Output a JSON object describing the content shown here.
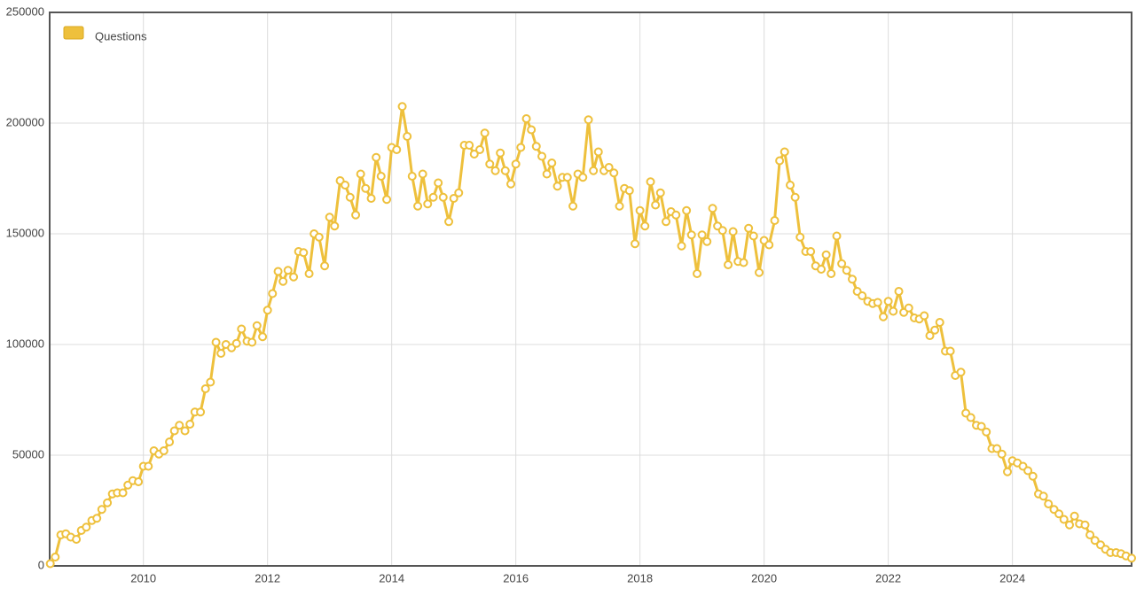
{
  "chart_data": {
    "type": "line",
    "x": [
      2008.5,
      2008.58,
      2008.67,
      2008.75,
      2008.83,
      2008.92,
      2009,
      2009.08,
      2009.17,
      2009.25,
      2009.33,
      2009.42,
      2009.5,
      2009.58,
      2009.67,
      2009.75,
      2009.83,
      2009.92,
      2010,
      2010.08,
      2010.17,
      2010.25,
      2010.33,
      2010.42,
      2010.5,
      2010.58,
      2010.67,
      2010.75,
      2010.83,
      2010.92,
      2011,
      2011.08,
      2011.17,
      2011.25,
      2011.33,
      2011.42,
      2011.5,
      2011.58,
      2011.67,
      2011.75,
      2011.83,
      2011.92,
      2012,
      2012.08,
      2012.17,
      2012.25,
      2012.33,
      2012.42,
      2012.5,
      2012.58,
      2012.67,
      2012.75,
      2012.83,
      2012.92,
      2013,
      2013.08,
      2013.17,
      2013.25,
      2013.33,
      2013.42,
      2013.5,
      2013.58,
      2013.67,
      2013.75,
      2013.83,
      2013.92,
      2014,
      2014.08,
      2014.17,
      2014.25,
      2014.33,
      2014.42,
      2014.5,
      2014.58,
      2014.67,
      2014.75,
      2014.83,
      2014.92,
      2015,
      2015.08,
      2015.17,
      2015.25,
      2015.33,
      2015.42,
      2015.5,
      2015.58,
      2015.67,
      2015.75,
      2015.83,
      2015.92,
      2016,
      2016.08,
      2016.17,
      2016.25,
      2016.33,
      2016.42,
      2016.5,
      2016.58,
      2016.67,
      2016.75,
      2016.83,
      2016.92,
      2017,
      2017.08,
      2017.17,
      2017.25,
      2017.33,
      2017.42,
      2017.5,
      2017.58,
      2017.67,
      2017.75,
      2017.83,
      2017.92,
      2018,
      2018.08,
      2018.17,
      2018.25,
      2018.33,
      2018.42,
      2018.5,
      2018.58,
      2018.67,
      2018.75,
      2018.83,
      2018.92,
      2019,
      2019.08,
      2019.17,
      2019.25,
      2019.33,
      2019.42,
      2019.5,
      2019.58,
      2019.67,
      2019.75,
      2019.83,
      2019.92,
      2020,
      2020.08,
      2020.17,
      2020.25,
      2020.33,
      2020.42,
      2020.5,
      2020.58,
      2020.67,
      2020.75,
      2020.83,
      2020.92,
      2021,
      2021.08,
      2021.17,
      2021.25,
      2021.33,
      2021.42,
      2021.5,
      2021.58,
      2021.67,
      2021.75,
      2021.83,
      2021.92,
      2022,
      2022.08,
      2022.17,
      2022.25,
      2022.33,
      2022.42,
      2022.5,
      2022.58,
      2022.67,
      2022.75,
      2022.83,
      2022.92,
      2023,
      2023.08,
      2023.17,
      2023.25,
      2023.33,
      2023.42,
      2023.5,
      2023.58,
      2023.67,
      2023.75,
      2023.83,
      2023.92,
      2024,
      2024.08,
      2024.17,
      2024.25,
      2024.33,
      2024.42,
      2024.5,
      2024.58,
      2024.67,
      2024.75,
      2024.83,
      2024.92,
      2025,
      2025.08,
      2025.17,
      2025.25,
      2025.33,
      2025.42,
      2025.5,
      2025.58,
      2025.67,
      2025.75,
      2025.83,
      2025.92
    ],
    "series": [
      {
        "name": "Questions",
        "color": "#eec03c",
        "values": [
          1000,
          4000,
          14000,
          14500,
          13000,
          12000,
          16000,
          17500,
          20500,
          21500,
          25500,
          28500,
          32500,
          33000,
          33000,
          36500,
          38500,
          38000,
          45000,
          45000,
          52000,
          50500,
          52000,
          56000,
          61000,
          63500,
          61000,
          64000,
          69500,
          69500,
          80000,
          83000,
          101000,
          96000,
          100000,
          98500,
          100500,
          107000,
          101500,
          101000,
          108500,
          103500,
          115500,
          123000,
          133000,
          128500,
          133500,
          130500,
          142000,
          141500,
          132000,
          150000,
          148500,
          135500,
          157500,
          153500,
          174000,
          172000,
          166500,
          158500,
          177000,
          170500,
          166000,
          184500,
          176000,
          165500,
          189000,
          188000,
          207500,
          194000,
          176000,
          162500,
          177000,
          163500,
          166500,
          173000,
          166500,
          155500,
          166000,
          168500,
          190000,
          190000,
          186000,
          188000,
          195500,
          181500,
          178500,
          186500,
          178500,
          172500,
          181500,
          189000,
          202000,
          197000,
          189500,
          185000,
          177000,
          182000,
          171500,
          175500,
          175500,
          162500,
          177000,
          175500,
          201500,
          178500,
          187000,
          178500,
          180000,
          177500,
          162500,
          170500,
          169500,
          145500,
          160500,
          153500,
          173500,
          163000,
          168500,
          155500,
          160000,
          158500,
          144500,
          160500,
          149500,
          132000,
          149500,
          146500,
          161500,
          153500,
          151500,
          136000,
          151000,
          137500,
          137000,
          152500,
          149000,
          132500,
          147000,
          145000,
          156000,
          183000,
          187000,
          172000,
          166500,
          148500,
          142000,
          142000,
          135500,
          134000,
          140500,
          132000,
          149000,
          136500,
          133500,
          129500,
          124000,
          122000,
          119500,
          118500,
          119000,
          112500,
          119500,
          115000,
          124000,
          114500,
          116500,
          112000,
          111500,
          113000,
          104000,
          106500,
          110000,
          97000,
          97000,
          86000,
          87500,
          69000,
          67000,
          63500,
          63000,
          60500,
          53000,
          53000,
          50500,
          42500,
          47500,
          46500,
          45000,
          43000,
          40500,
          32500,
          31500,
          28000,
          25500,
          23500,
          21000,
          18500,
          22500,
          19000,
          18500,
          14000,
          11500,
          9500,
          7500,
          6000,
          6000,
          5500,
          4500,
          3500
        ]
      }
    ],
    "xlim": [
      2008.49,
      2025.92
    ],
    "xticks": [
      2010,
      2012,
      2014,
      2016,
      2018,
      2020,
      2022,
      2024
    ],
    "ylim": [
      0,
      250000
    ],
    "yticks": [
      0,
      50000,
      100000,
      150000,
      200000,
      250000
    ],
    "grid": true,
    "legend": "top-left"
  }
}
